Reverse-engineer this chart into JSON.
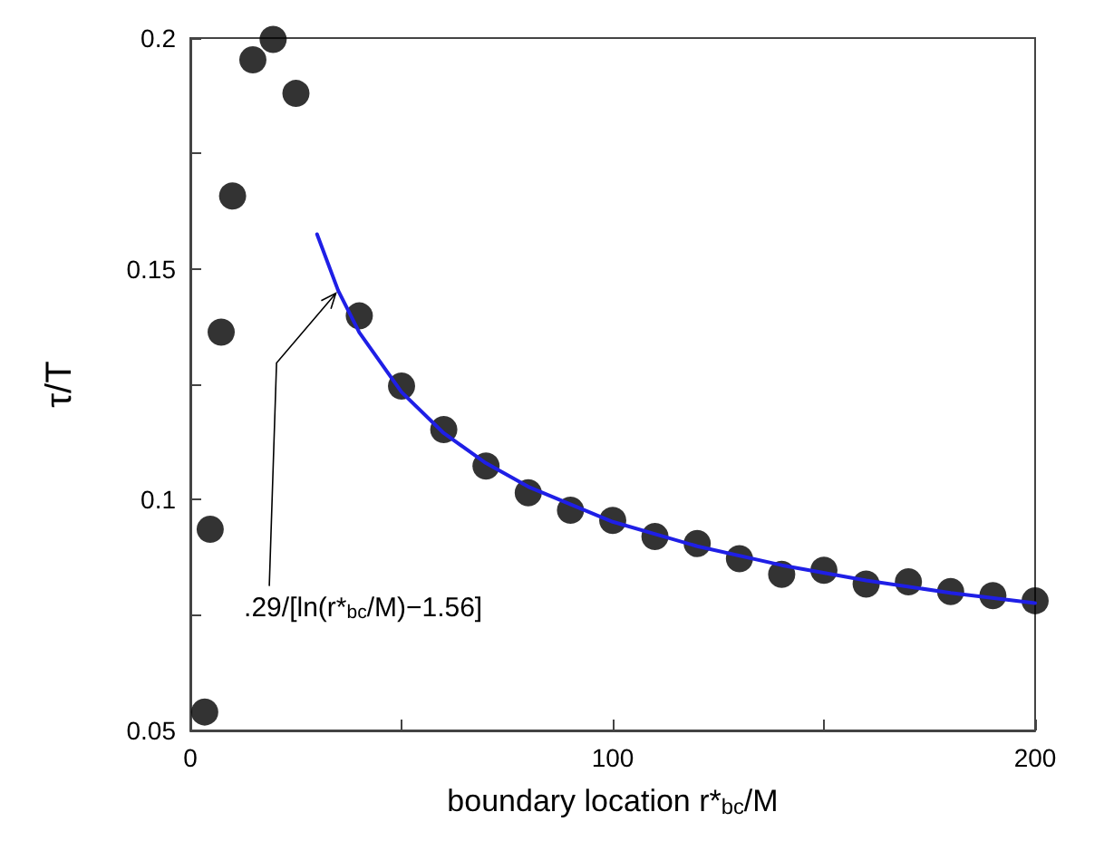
{
  "chart_data": {
    "type": "scatter",
    "xlabel": "boundary location r*$_{bc}$/M",
    "ylabel": "τ/T",
    "xlim": [
      0,
      200
    ],
    "xticks": [
      0,
      {
        "value": 50,
        "label": null
      },
      100,
      {
        "value": 150,
        "label": null
      },
      200
    ],
    "ylim": [
      0.05,
      0.2
    ],
    "yticks": [
      0.05,
      {
        "value": 0.075,
        "label": null
      },
      0.1,
      {
        "value": 0.125,
        "label": null
      },
      0.15,
      {
        "value": 0.175,
        "label": null
      },
      0.2
    ],
    "marker": "circle",
    "series": [
      {
        "color": "#000000",
        "x": [
          3.4,
          4.7,
          7.3,
          10,
          14.8,
          19.6,
          25,
          40,
          50,
          60,
          70,
          80,
          90,
          100,
          110,
          120,
          130,
          140,
          150,
          160,
          170,
          180,
          190,
          200
        ],
        "values": [
          0.054,
          0.0936,
          0.1363,
          0.1658,
          0.1953,
          0.1997,
          0.188,
          0.1398,
          0.1246,
          0.1152,
          0.1073,
          0.1015,
          0.0977,
          0.0955,
          0.092,
          0.0905,
          0.0872,
          0.0838,
          0.0847,
          0.0817,
          0.0822,
          0.0801,
          0.0792,
          0.0781
        ]
      },
      {
        "type": "line",
        "color": "#1f1fe6",
        "marker": "none",
        "x": [
          30,
          35,
          40,
          50,
          60,
          70,
          80,
          100,
          120,
          140,
          160,
          180,
          200
        ],
        "values": [
          0.1575,
          0.1453,
          0.1362,
          0.1233,
          0.1144,
          0.1079,
          0.1028,
          0.0952,
          0.0899,
          0.0858,
          0.0825,
          0.0798,
          0.0776
        ]
      }
    ],
    "annotations": [
      {
        "text": ".29/[ln(r*$_{bc}$/M)−1.56]",
        "x": 35,
        "y": 0.1453
      }
    ]
  }
}
